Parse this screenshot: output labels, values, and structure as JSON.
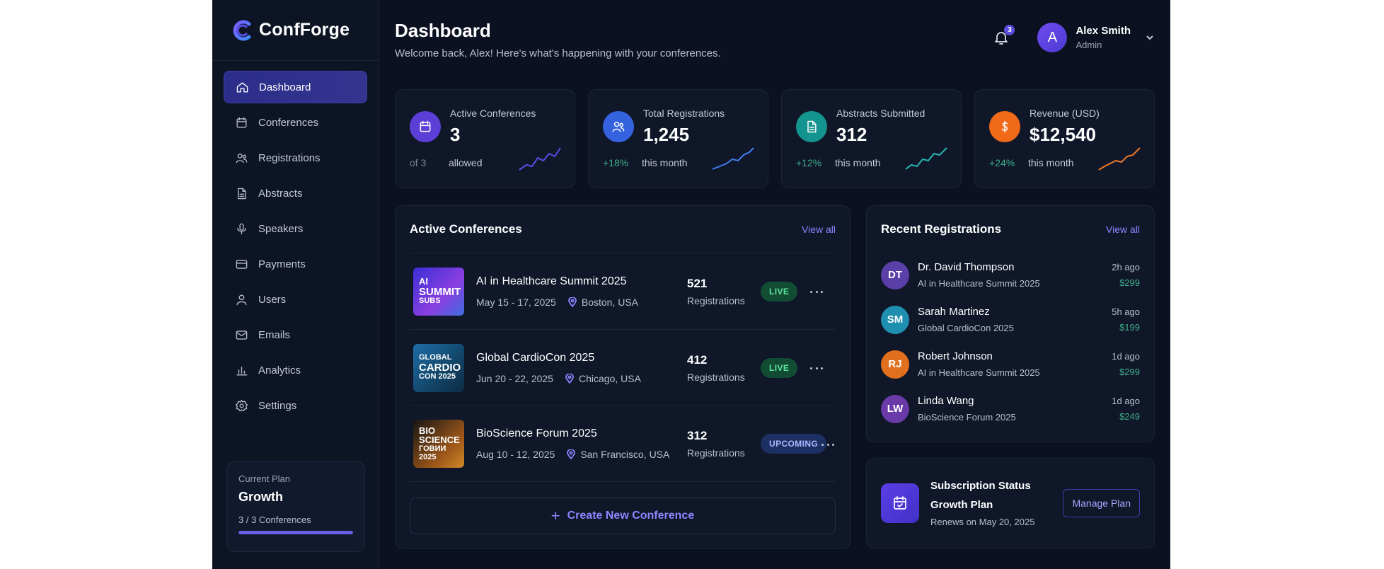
{
  "app": {
    "name": "ConfForge"
  },
  "sidebar": {
    "items": [
      {
        "label": "Dashboard",
        "icon": "home-icon"
      },
      {
        "label": "Conferences",
        "icon": "calendar-icon"
      },
      {
        "label": "Registrations",
        "icon": "users-icon"
      },
      {
        "label": "Abstracts",
        "icon": "file-icon"
      },
      {
        "label": "Speakers",
        "icon": "microphone-icon"
      },
      {
        "label": "Payments",
        "icon": "credit-card-icon"
      },
      {
        "label": "Users",
        "icon": "user-icon"
      },
      {
        "label": "Emails",
        "icon": "mail-icon"
      },
      {
        "label": "Analytics",
        "icon": "bar-chart-icon"
      },
      {
        "label": "Settings",
        "icon": "gear-icon"
      }
    ],
    "plan": {
      "label": "Current Plan",
      "name": "Growth",
      "usage": "3 / 3 Conferences",
      "progress": 1.0
    }
  },
  "header": {
    "title": "Dashboard",
    "subtitle": "Welcome back, Alex! Here's what's happening with your conferences.",
    "notifications": "3",
    "user": {
      "initial": "A",
      "name": "Alex Smith",
      "role": "Admin"
    }
  },
  "stats": [
    {
      "label": "Active Conferences",
      "value": "3",
      "change": "of 3",
      "change_muted": true,
      "suffix": "allowed",
      "icon": "calendar-icon",
      "color": "#5b3fd6",
      "spark_color": "#5b4ee8"
    },
    {
      "label": "Total Registrations",
      "value": "1,245",
      "change": "+18%",
      "suffix": "this month",
      "icon": "users-icon",
      "color": "#3563e0",
      "spark_color": "#3f7ef0"
    },
    {
      "label": "Abstracts Submitted",
      "value": "312",
      "change": "+12%",
      "suffix": "this month",
      "icon": "file-icon",
      "color": "#14948e",
      "spark_color": "#26b6b0"
    },
    {
      "label": "Revenue (USD)",
      "value": "$12,540",
      "change": "+24%",
      "suffix": "this month",
      "icon": "dollar-icon",
      "color": "#f06a1a",
      "spark_color": "#f07a2a"
    }
  ],
  "active_conferences": {
    "title": "Active Conferences",
    "view_all": "View all",
    "items": [
      {
        "thumb": [
          "AI",
          "SUMMIT",
          "SUBS"
        ],
        "thumb_class": "thumb-ai",
        "name": "AI in Healthcare Summit 2025",
        "dates": "May 15 - 17, 2025",
        "location": "Boston, USA",
        "count": "521",
        "count_label": "Registrations",
        "status": "LIVE"
      },
      {
        "thumb": [
          "GLOBAL",
          "CARDIO",
          "CON 2025"
        ],
        "thumb_class": "thumb-cardio",
        "name": "Global CardioCon 2025",
        "dates": "Jun 20 - 22, 2025",
        "location": "Chicago, USA",
        "count": "412",
        "count_label": "Registrations",
        "status": "LIVE"
      },
      {
        "thumb": [
          "BIO",
          "SCIENCE",
          "ГОВИИ 2025"
        ],
        "thumb_class": "thumb-bio",
        "name": "BioScience Forum 2025",
        "dates": "Aug 10 - 12, 2025",
        "location": "San Francisco, USA",
        "count": "312",
        "count_label": "Registrations",
        "status": "UPCOMING"
      }
    ],
    "create_label": "Create New Conference"
  },
  "recent_registrations": {
    "title": "Recent Registrations",
    "view_all": "View all",
    "items": [
      {
        "initials": "DT",
        "color": "#5b3fa8",
        "name": "Dr. David Thompson",
        "conference": "AI in Healthcare Summit 2025",
        "time": "2h ago",
        "amount": "$299"
      },
      {
        "initials": "SM",
        "color": "#1f8fb0",
        "name": "Sarah Martinez",
        "conference": "Global CardioCon 2025",
        "time": "5h ago",
        "amount": "$199"
      },
      {
        "initials": "RJ",
        "color": "#e0701e",
        "name": "Robert Johnson",
        "conference": "AI in Healthcare Summit 2025",
        "time": "1d ago",
        "amount": "$299"
      },
      {
        "initials": "LW",
        "color": "#6a3aa8",
        "name": "Linda Wang",
        "conference": "BioScience Forum 2025",
        "time": "1d ago",
        "amount": "$249"
      }
    ]
  },
  "subscription": {
    "title": "Subscription Status",
    "plan": "Growth Plan",
    "renews": "Renews on May 20, 2025",
    "manage_label": "Manage Plan"
  }
}
